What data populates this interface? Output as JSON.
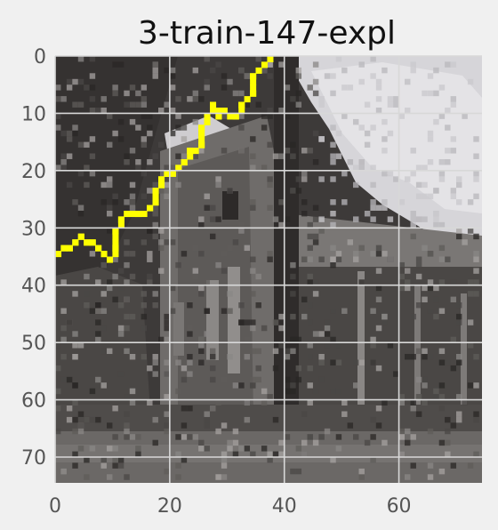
{
  "chart_data": {
    "type": "heatmap",
    "title": "3-train-147-expl",
    "xlabel": "",
    "ylabel": "",
    "x_range": [
      0,
      74
    ],
    "y_range": [
      0,
      74
    ],
    "y_inverted": true,
    "x_ticks": [
      "0",
      "20",
      "40",
      "60"
    ],
    "y_ticks": [
      "0",
      "10",
      "20",
      "30",
      "40",
      "50",
      "60",
      "70"
    ],
    "grid": true,
    "image_description_colors": {
      "background": "#f0f0f0",
      "grid": "#d8d8d8",
      "dark": "#3d3a39",
      "mid": "#6f6c6a",
      "light": "#d9d8dc",
      "explanation_line": "#ffff00"
    },
    "explanation_path": [
      [
        37,
        0
      ],
      [
        34,
        3
      ],
      [
        34,
        6
      ],
      [
        32,
        8
      ],
      [
        31,
        10
      ],
      [
        29,
        9
      ],
      [
        28,
        10
      ],
      [
        27,
        8
      ],
      [
        26,
        10
      ],
      [
        25,
        12
      ],
      [
        25,
        15
      ],
      [
        23,
        16
      ],
      [
        22,
        18
      ],
      [
        21,
        19
      ],
      [
        19,
        20
      ],
      [
        18,
        21
      ],
      [
        17,
        23
      ],
      [
        17,
        25
      ],
      [
        16,
        26
      ],
      [
        14,
        27
      ],
      [
        12,
        27
      ],
      [
        11,
        28
      ],
      [
        10,
        30
      ],
      [
        10,
        33
      ],
      [
        9,
        35
      ],
      [
        8,
        34
      ],
      [
        7,
        33
      ],
      [
        6,
        32
      ],
      [
        5,
        32
      ],
      [
        4,
        31
      ],
      [
        3,
        32
      ],
      [
        2,
        33
      ],
      [
        1,
        33
      ],
      [
        0,
        34
      ]
    ]
  }
}
